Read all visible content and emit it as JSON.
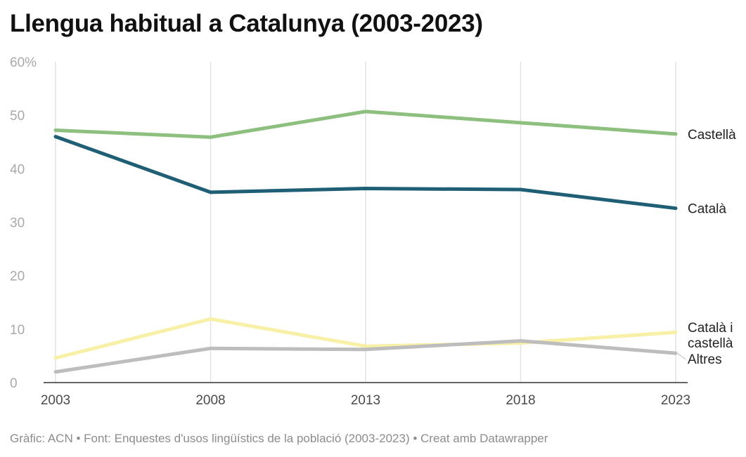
{
  "chart_data": {
    "type": "line",
    "title": "Llengua habitual a Catalunya (2003-2023)",
    "x": [
      "2003",
      "2008",
      "2013",
      "2018",
      "2023"
    ],
    "y_ticks": [
      "60%",
      "50",
      "40",
      "30",
      "20",
      "10",
      "0"
    ],
    "ylim": [
      0,
      60
    ],
    "series": [
      {
        "name": "Castellà",
        "label_lines": [
          "Castellà"
        ],
        "color": "#8dbf7e",
        "values": [
          47.2,
          45.9,
          50.7,
          48.6,
          46.5
        ]
      },
      {
        "name": "Català",
        "label_lines": [
          "Català"
        ],
        "color": "#1f5f75",
        "values": [
          46.0,
          35.6,
          36.3,
          36.1,
          32.6
        ]
      },
      {
        "name": "Català i castellà",
        "label_lines": [
          "Català i",
          "castellà"
        ],
        "color": "#f8f0a6",
        "values": [
          4.6,
          11.9,
          6.8,
          7.4,
          9.4
        ]
      },
      {
        "name": "Altres",
        "label_lines": [
          "Altres"
        ],
        "color": "#bdbdbd",
        "values": [
          2.0,
          6.4,
          6.2,
          7.8,
          5.5
        ]
      }
    ]
  },
  "footer": "Gràfic: ACN • Font: Enquestes d'usos lingüístics de la població (2003-2023) • Creat amb Datawrapper"
}
